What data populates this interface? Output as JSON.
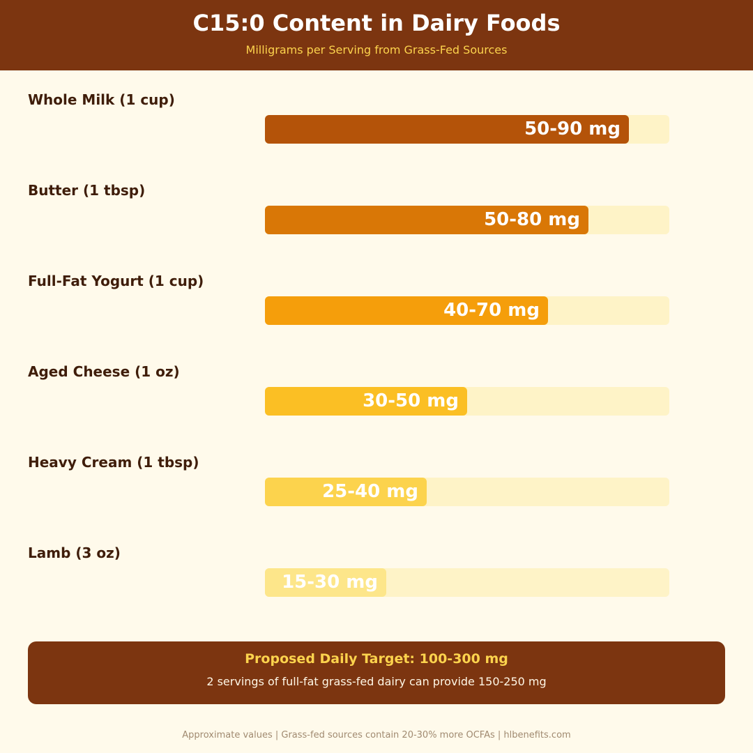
{
  "header": {
    "title": "C15:0 Content in Dairy Foods",
    "subtitle": "Milligrams per Serving from Grass-Fed Sources"
  },
  "chart_data": {
    "type": "bar",
    "orientation": "horizontal",
    "title": "C15:0 Content in Dairy Foods",
    "subtitle": "Milligrams per Serving from Grass-Fed Sources",
    "unit": "mg",
    "xlim": [
      0,
      100
    ],
    "grid": false,
    "categories": [
      "Whole Milk (1 cup)",
      "Butter (1 tbsp)",
      "Full-Fat Yogurt (1 cup)",
      "Aged Cheese (1 oz)",
      "Heavy Cream (1 tbsp)",
      "Lamb (3 oz)"
    ],
    "ranges": [
      [
        50,
        90
      ],
      [
        50,
        80
      ],
      [
        40,
        70
      ],
      [
        30,
        50
      ],
      [
        25,
        40
      ],
      [
        15,
        30
      ]
    ],
    "values": [
      90,
      80,
      70,
      50,
      40,
      30
    ],
    "data_labels": [
      "50-90 mg",
      "50-80 mg",
      "40-70 mg",
      "30-50 mg",
      "25-40 mg",
      "15-30 mg"
    ],
    "colors": [
      "#b45309",
      "#d97706",
      "#f59e0b",
      "#fbbf24",
      "#fcd34d",
      "#fde68a"
    ],
    "track_color": "#fef3c7"
  },
  "callout": {
    "title": "Proposed Daily Target: 100-300 mg",
    "text": "2 servings of full-fat grass-fed dairy can provide 150-250 mg"
  },
  "footer": "Approximate values | Grass-fed sources contain 20-30% more OCFAs | hlbenefits.com"
}
